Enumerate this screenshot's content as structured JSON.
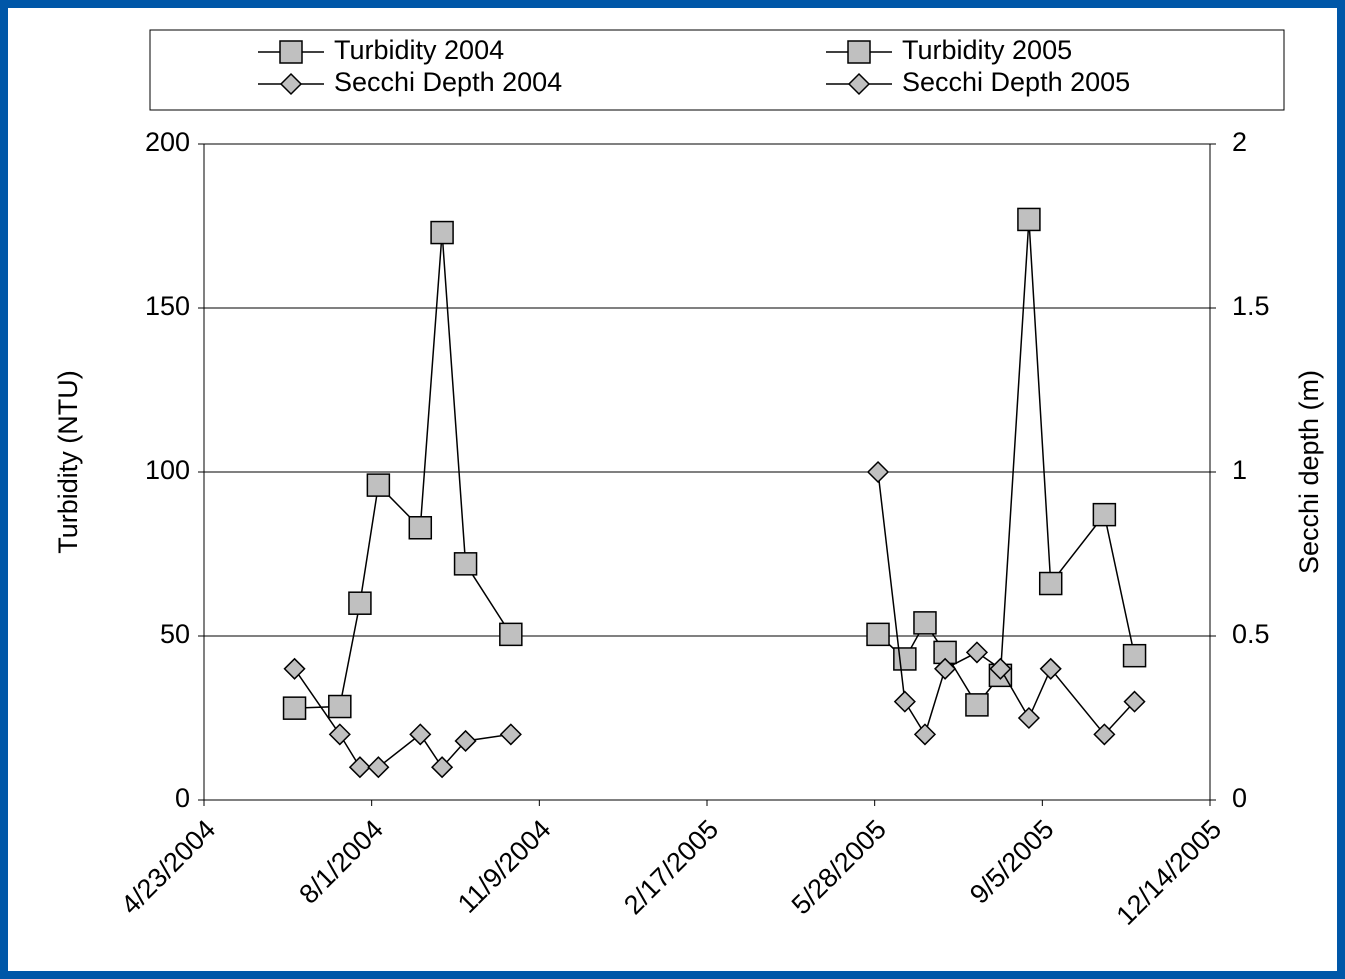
{
  "chart_data": {
    "type": "line",
    "ylabel": "Turbidity (NTU)",
    "y2label": "Secchi depth (m)",
    "xlim": [
      "4/23/2004",
      "12/14/2005"
    ],
    "xticks": [
      "4/23/2004",
      "8/1/2004",
      "11/9/2004",
      "2/17/2005",
      "5/28/2005",
      "9/5/2005",
      "12/14/2005"
    ],
    "ylim": [
      0,
      200
    ],
    "yticks": [
      0,
      50,
      100,
      150,
      200
    ],
    "y2lim": [
      0,
      2
    ],
    "y2ticks": [
      0,
      0.5,
      1,
      1.5,
      2
    ],
    "grid": true,
    "legend": "top",
    "series": [
      {
        "name": "Turbidity 2004",
        "color": "#c0c0c0",
        "marker": "square",
        "x": [
          "6/16/2004",
          "7/13/2004",
          "7/25/2004",
          "8/5/2004",
          "8/30/2004",
          "9/12/2004",
          "9/26/2004",
          "10/23/2004"
        ],
        "values": [
          28,
          28.5,
          60,
          96,
          83,
          173,
          72,
          50.5
        ]
      },
      {
        "name": "Secchi Depth 2004",
        "color": "#c0c0c0",
        "marker": "diamond",
        "axis": "y2",
        "x": [
          "6/16/2004",
          "7/13/2004",
          "7/25/2004",
          "8/5/2004",
          "8/30/2004",
          "9/12/2004",
          "9/26/2004",
          "10/23/2004"
        ],
        "values": [
          0.4,
          0.2,
          0.1,
          0.1,
          0.2,
          0.1,
          0.18,
          0.2
        ]
      },
      {
        "name": "Turbidity 2005",
        "color": "#c0c0c0",
        "marker": "square",
        "x": [
          "5/30/2005",
          "6/15/2005",
          "6/27/2005",
          "7/9/2005",
          "7/28/2005",
          "8/11/2005",
          "8/28/2005",
          "9/10/2005",
          "10/12/2005",
          "10/30/2005"
        ],
        "values": [
          50.5,
          43,
          54,
          45,
          29,
          38,
          177,
          66,
          87,
          44
        ]
      },
      {
        "name": "Secchi Depth 2005",
        "color": "#c0c0c0",
        "marker": "diamond",
        "axis": "y2",
        "x": [
          "5/30/2005",
          "6/15/2005",
          "6/27/2005",
          "7/9/2005",
          "7/28/2005",
          "8/11/2005",
          "8/28/2005",
          "9/10/2005",
          "10/12/2005",
          "10/30/2005"
        ],
        "values": [
          1.0,
          0.3,
          0.2,
          0.4,
          0.45,
          0.4,
          0.25,
          0.4,
          0.2,
          0.3
        ]
      }
    ]
  }
}
